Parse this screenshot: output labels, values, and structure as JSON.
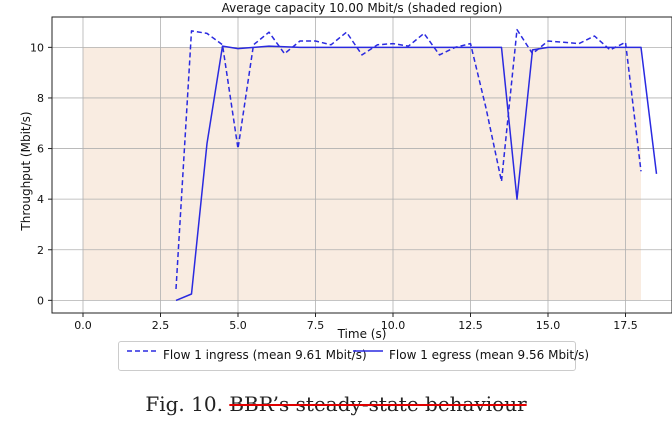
{
  "chart_data": {
    "type": "line",
    "title": "Average capacity 10.00 Mbit/s (shaded region)",
    "xlabel": "Time (s)",
    "ylabel": "Throughput (Mbit/s)",
    "xlim": [
      -1.0,
      19.0
    ],
    "ylim": [
      -0.5,
      11.2
    ],
    "xticks": [
      0.0,
      2.5,
      5.0,
      7.5,
      10.0,
      12.5,
      15.0,
      17.5
    ],
    "xtick_labels": [
      "0.0",
      "2.5",
      "5.0",
      "7.5",
      "10.0",
      "12.5",
      "15.0",
      "17.5"
    ],
    "yticks": [
      0,
      2,
      4,
      6,
      8,
      10
    ],
    "ytick_labels": [
      "0",
      "2",
      "4",
      "6",
      "8",
      "10"
    ],
    "grid": true,
    "shaded_region": {
      "x": [
        0.0,
        18.0
      ],
      "y": [
        0,
        10
      ],
      "color": "#f9ece1"
    },
    "series": [
      {
        "name": "Flow 1 ingress (mean 9.61 Mbit/s)",
        "style": "dashed",
        "color": "#2a2ae0",
        "x": [
          3.0,
          3.5,
          4.0,
          4.5,
          5.0,
          5.5,
          6.0,
          6.5,
          7.0,
          7.5,
          8.0,
          8.5,
          9.0,
          9.5,
          10.0,
          10.5,
          11.0,
          11.5,
          12.0,
          12.5,
          13.0,
          13.5,
          14.0,
          14.5,
          15.0,
          15.5,
          16.0,
          16.5,
          17.0,
          17.5,
          18.0
        ],
        "y": [
          0.45,
          10.65,
          10.55,
          10.1,
          6.0,
          10.1,
          10.6,
          9.75,
          10.25,
          10.25,
          10.1,
          10.6,
          9.7,
          10.1,
          10.15,
          10.05,
          10.55,
          9.7,
          10.0,
          10.15,
          7.6,
          4.7,
          10.7,
          9.75,
          10.25,
          10.2,
          10.15,
          10.45,
          9.9,
          10.2,
          5.1
        ]
      },
      {
        "name": "Flow 1 egress (mean 9.56 Mbit/s)",
        "style": "solid",
        "color": "#2a2ae0",
        "x": [
          3.0,
          3.5,
          4.0,
          4.5,
          5.0,
          5.5,
          6.0,
          7.0,
          8.0,
          9.0,
          10.0,
          11.0,
          12.0,
          13.0,
          13.5,
          14.0,
          14.5,
          15.0,
          16.0,
          17.0,
          18.0,
          18.5
        ],
        "y": [
          0.0,
          0.25,
          6.2,
          10.05,
          9.95,
          10.0,
          10.05,
          10.0,
          10.0,
          10.0,
          10.0,
          10.0,
          10.0,
          10.0,
          10.0,
          4.0,
          9.9,
          10.0,
          10.0,
          10.0,
          10.0,
          5.0
        ]
      }
    ],
    "legend_position": "bottom"
  },
  "figure": {
    "caption_prefix": "Fig. 10.",
    "caption_text": "BBR’s steady-state behaviour"
  }
}
